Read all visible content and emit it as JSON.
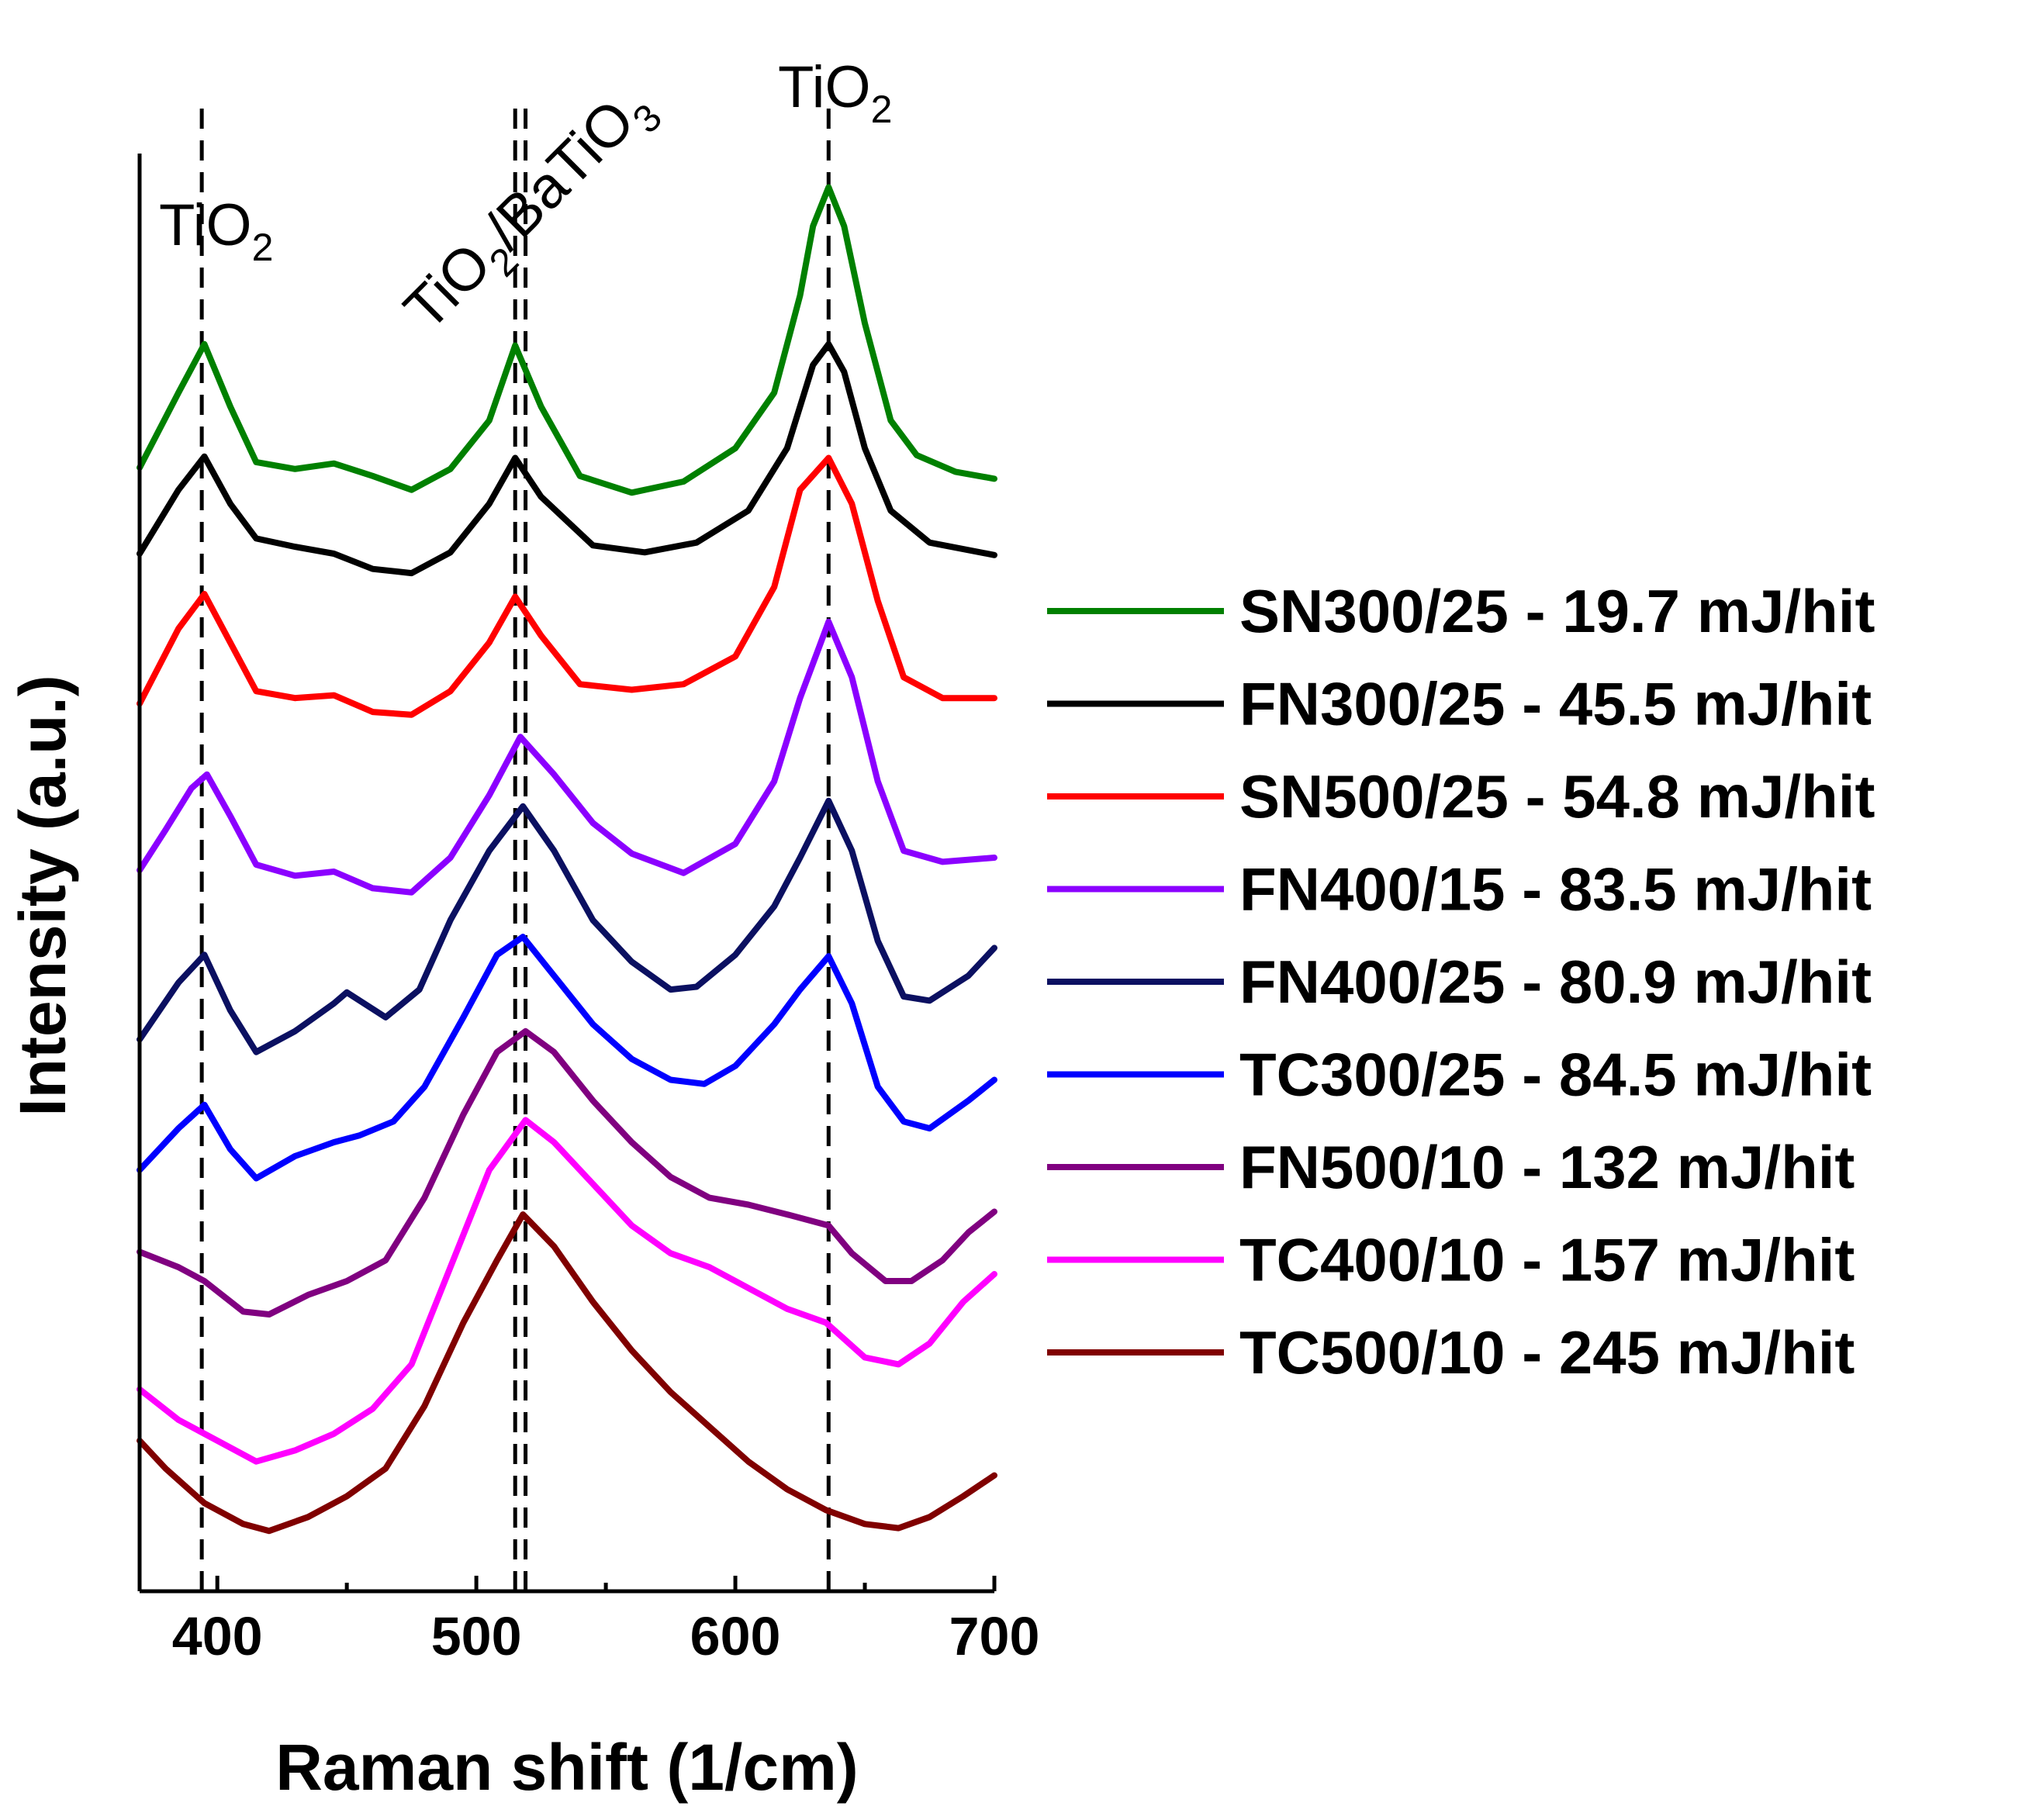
{
  "chart_data": {
    "type": "line",
    "title": "",
    "xlabel": "Raman shift (1/cm)",
    "ylabel": "Intensity (a.u.)",
    "xlim": [
      370,
      700
    ],
    "ylim": [
      0,
      100
    ],
    "x_ticks": [
      400,
      500,
      600,
      700
    ],
    "y_ticks_shown": false,
    "legend_position": "right",
    "grid": false,
    "reference_lines": [
      {
        "x": 394,
        "label": "TiO",
        "subscript": "2"
      },
      {
        "x": 515,
        "label": "TiO",
        "subscript": "2",
        "label_suffix": "/BaTiO",
        "suffix_subscript": "3"
      },
      {
        "x": 519,
        "label": "",
        "subscript": ""
      },
      {
        "x": 636,
        "label": "TiO",
        "subscript": "2"
      }
    ],
    "series": [
      {
        "name": "SN300/25 - 19.7 mJ/hit",
        "color": "#008000",
        "points": [
          [
            370,
            78.6
          ],
          [
            385,
            84.0
          ],
          [
            395,
            87.5
          ],
          [
            405,
            83.0
          ],
          [
            415,
            79.0
          ],
          [
            430,
            78.5
          ],
          [
            445,
            78.9
          ],
          [
            460,
            78.0
          ],
          [
            475,
            77.0
          ],
          [
            490,
            78.5
          ],
          [
            505,
            82.0
          ],
          [
            515,
            87.4
          ],
          [
            525,
            83.0
          ],
          [
            540,
            78.0
          ],
          [
            560,
            76.8
          ],
          [
            580,
            77.6
          ],
          [
            600,
            80.0
          ],
          [
            615,
            84.0
          ],
          [
            625,
            91.0
          ],
          [
            630,
            96.0
          ],
          [
            636,
            98.8
          ],
          [
            642,
            96.0
          ],
          [
            650,
            89.0
          ],
          [
            660,
            82.0
          ],
          [
            670,
            79.5
          ],
          [
            685,
            78.3
          ],
          [
            700,
            77.8
          ]
        ]
      },
      {
        "name": "FN300/25 - 45.5 mJ/hit",
        "color": "#000000",
        "points": [
          [
            370,
            72.4
          ],
          [
            385,
            77.0
          ],
          [
            395,
            79.4
          ],
          [
            405,
            76.0
          ],
          [
            415,
            73.5
          ],
          [
            430,
            72.9
          ],
          [
            445,
            72.4
          ],
          [
            460,
            71.3
          ],
          [
            475,
            71.0
          ],
          [
            490,
            72.5
          ],
          [
            505,
            76.0
          ],
          [
            515,
            79.3
          ],
          [
            525,
            76.5
          ],
          [
            545,
            73.0
          ],
          [
            565,
            72.5
          ],
          [
            585,
            73.2
          ],
          [
            605,
            75.5
          ],
          [
            620,
            80.0
          ],
          [
            630,
            86.0
          ],
          [
            636,
            87.5
          ],
          [
            642,
            85.5
          ],
          [
            650,
            80.0
          ],
          [
            660,
            75.5
          ],
          [
            675,
            73.2
          ],
          [
            700,
            72.3
          ]
        ]
      },
      {
        "name": "SN500/25 - 54.8 mJ/hit",
        "color": "#ff0000",
        "points": [
          [
            370,
            61.6
          ],
          [
            385,
            67.0
          ],
          [
            395,
            69.5
          ],
          [
            405,
            66.0
          ],
          [
            415,
            62.5
          ],
          [
            430,
            62.0
          ],
          [
            445,
            62.2
          ],
          [
            460,
            61.0
          ],
          [
            475,
            60.8
          ],
          [
            490,
            62.5
          ],
          [
            505,
            66.0
          ],
          [
            515,
            69.3
          ],
          [
            525,
            66.5
          ],
          [
            540,
            63.0
          ],
          [
            560,
            62.6
          ],
          [
            580,
            63.0
          ],
          [
            600,
            65.0
          ],
          [
            615,
            70.0
          ],
          [
            625,
            77.0
          ],
          [
            636,
            79.3
          ],
          [
            645,
            76.0
          ],
          [
            655,
            69.0
          ],
          [
            665,
            63.5
          ],
          [
            680,
            62.0
          ],
          [
            700,
            62.0
          ]
        ]
      },
      {
        "name": "FN400/15 - 83.5 mJ/hit",
        "color": "#8b00ff",
        "points": [
          [
            370,
            49.6
          ],
          [
            380,
            52.5
          ],
          [
            390,
            55.5
          ],
          [
            396,
            56.5
          ],
          [
            405,
            53.5
          ],
          [
            415,
            50.0
          ],
          [
            430,
            49.2
          ],
          [
            445,
            49.5
          ],
          [
            460,
            48.3
          ],
          [
            475,
            48.0
          ],
          [
            490,
            50.5
          ],
          [
            505,
            55.0
          ],
          [
            517,
            59.2
          ],
          [
            530,
            56.5
          ],
          [
            545,
            53.0
          ],
          [
            560,
            50.8
          ],
          [
            580,
            49.4
          ],
          [
            600,
            51.5
          ],
          [
            615,
            56.0
          ],
          [
            625,
            62.0
          ],
          [
            636,
            67.5
          ],
          [
            645,
            63.5
          ],
          [
            655,
            56.0
          ],
          [
            665,
            51.0
          ],
          [
            680,
            50.2
          ],
          [
            700,
            50.5
          ]
        ]
      },
      {
        "name": "FN400/25 - 80.9 mJ/hit",
        "color": "#0b1061",
        "points": [
          [
            370,
            37.4
          ],
          [
            385,
            41.5
          ],
          [
            395,
            43.5
          ],
          [
            405,
            39.5
          ],
          [
            415,
            36.5
          ],
          [
            430,
            38.0
          ],
          [
            445,
            40.0
          ],
          [
            450,
            40.8
          ],
          [
            465,
            39.0
          ],
          [
            478,
            41.0
          ],
          [
            490,
            46.0
          ],
          [
            505,
            51.0
          ],
          [
            518,
            54.2
          ],
          [
            530,
            51.0
          ],
          [
            545,
            46.0
          ],
          [
            560,
            43.0
          ],
          [
            575,
            41.0
          ],
          [
            585,
            41.2
          ],
          [
            600,
            43.5
          ],
          [
            615,
            47.0
          ],
          [
            625,
            50.5
          ],
          [
            636,
            54.6
          ],
          [
            645,
            51.0
          ],
          [
            655,
            44.5
          ],
          [
            665,
            40.5
          ],
          [
            675,
            40.2
          ],
          [
            690,
            42.0
          ],
          [
            700,
            44.0
          ]
        ]
      },
      {
        "name": "TC300/25 - 84.5 mJ/hit",
        "color": "#0000ff",
        "points": [
          [
            370,
            28.0
          ],
          [
            385,
            31.0
          ],
          [
            395,
            32.7
          ],
          [
            405,
            29.5
          ],
          [
            415,
            27.4
          ],
          [
            430,
            29.0
          ],
          [
            445,
            30.0
          ],
          [
            455,
            30.5
          ],
          [
            468,
            31.5
          ],
          [
            480,
            34.0
          ],
          [
            495,
            39.0
          ],
          [
            508,
            43.5
          ],
          [
            518,
            44.8
          ],
          [
            530,
            42.0
          ],
          [
            545,
            38.5
          ],
          [
            560,
            36.0
          ],
          [
            575,
            34.5
          ],
          [
            588,
            34.2
          ],
          [
            600,
            35.5
          ],
          [
            615,
            38.5
          ],
          [
            625,
            41.0
          ],
          [
            636,
            43.4
          ],
          [
            645,
            40.0
          ],
          [
            655,
            34.0
          ],
          [
            665,
            31.5
          ],
          [
            675,
            31.0
          ],
          [
            690,
            33.0
          ],
          [
            700,
            34.5
          ]
        ]
      },
      {
        "name": "FN500/10 - 132 mJ/hit",
        "color": "#800080",
        "points": [
          [
            370,
            22.1
          ],
          [
            385,
            21.0
          ],
          [
            395,
            20.0
          ],
          [
            410,
            17.8
          ],
          [
            420,
            17.6
          ],
          [
            435,
            19.0
          ],
          [
            450,
            20.0
          ],
          [
            465,
            21.5
          ],
          [
            480,
            26.0
          ],
          [
            495,
            32.0
          ],
          [
            508,
            36.5
          ],
          [
            519,
            38.0
          ],
          [
            530,
            36.5
          ],
          [
            545,
            33.0
          ],
          [
            560,
            30.0
          ],
          [
            575,
            27.5
          ],
          [
            590,
            26.0
          ],
          [
            605,
            25.5
          ],
          [
            620,
            24.8
          ],
          [
            636,
            24.0
          ],
          [
            645,
            22.0
          ],
          [
            658,
            20.0
          ],
          [
            668,
            20.0
          ],
          [
            680,
            21.5
          ],
          [
            690,
            23.5
          ],
          [
            700,
            25.0
          ]
        ]
      },
      {
        "name": "TC400/10 - 157 mJ/hit",
        "color": "#ff00ff",
        "points": [
          [
            370,
            12.2
          ],
          [
            385,
            10.0
          ],
          [
            400,
            8.5
          ],
          [
            415,
            7.0
          ],
          [
            430,
            7.8
          ],
          [
            445,
            9.0
          ],
          [
            460,
            10.8
          ],
          [
            475,
            14.0
          ],
          [
            490,
            21.0
          ],
          [
            505,
            28.0
          ],
          [
            519,
            31.6
          ],
          [
            530,
            30.0
          ],
          [
            545,
            27.0
          ],
          [
            560,
            24.0
          ],
          [
            575,
            22.0
          ],
          [
            590,
            21.0
          ],
          [
            605,
            19.5
          ],
          [
            620,
            18.0
          ],
          [
            635,
            17.0
          ],
          [
            650,
            14.5
          ],
          [
            663,
            14.0
          ],
          [
            675,
            15.5
          ],
          [
            688,
            18.5
          ],
          [
            700,
            20.5
          ]
        ]
      },
      {
        "name": "TC500/10 - 245 mJ/hit",
        "color": "#800000",
        "points": [
          [
            370,
            8.5
          ],
          [
            380,
            6.5
          ],
          [
            395,
            4.0
          ],
          [
            410,
            2.5
          ],
          [
            420,
            2.0
          ],
          [
            435,
            3.0
          ],
          [
            450,
            4.5
          ],
          [
            465,
            6.5
          ],
          [
            480,
            11.0
          ],
          [
            495,
            17.0
          ],
          [
            508,
            21.5
          ],
          [
            518,
            24.8
          ],
          [
            530,
            22.5
          ],
          [
            545,
            18.5
          ],
          [
            560,
            15.0
          ],
          [
            575,
            12.0
          ],
          [
            590,
            9.5
          ],
          [
            605,
            7.0
          ],
          [
            620,
            5.0
          ],
          [
            635,
            3.5
          ],
          [
            650,
            2.5
          ],
          [
            663,
            2.2
          ],
          [
            675,
            3.0
          ],
          [
            688,
            4.5
          ],
          [
            700,
            6.0
          ]
        ]
      }
    ]
  }
}
